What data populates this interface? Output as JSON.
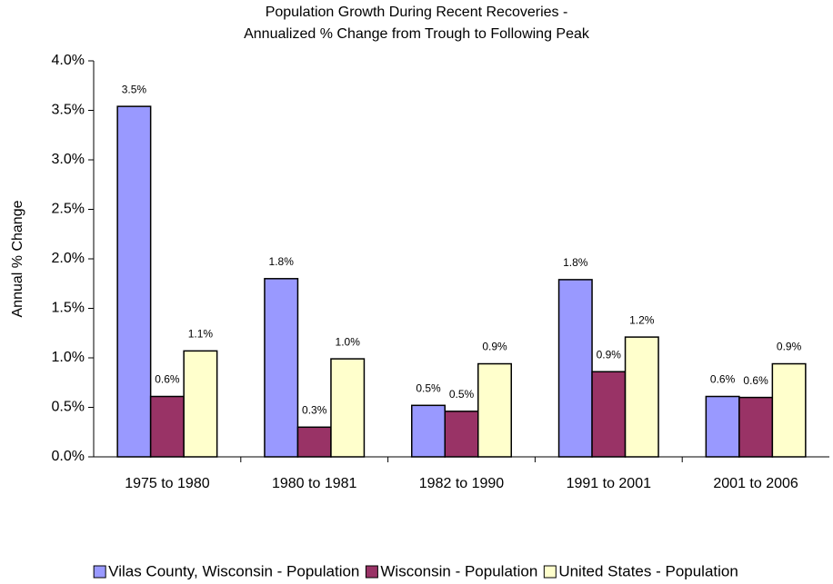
{
  "chart_data": {
    "type": "bar",
    "title": [
      "Population Growth During Recent Recoveries -",
      "Annualized % Change from Trough to Following Peak"
    ],
    "y_label": "Annual % Change",
    "categories": [
      "1975 to 1980",
      "1980 to 1981",
      "1982 to 1990",
      "1991 to 2001",
      "2001 to 2006"
    ],
    "series": [
      {
        "name": "Vilas County, Wisconsin - Population",
        "color": "#9999ff",
        "values": [
          3.54,
          1.8,
          0.52,
          1.79,
          0.61
        ],
        "value_labels": [
          "3.5%",
          "1.8%",
          "0.5%",
          "1.8%",
          "0.6%"
        ]
      },
      {
        "name": "Wisconsin - Population",
        "color": "#993366",
        "values": [
          0.61,
          0.3,
          0.46,
          0.86,
          0.6
        ],
        "value_labels": [
          "0.6%",
          "0.3%",
          "0.5%",
          "0.9%",
          "0.6%"
        ]
      },
      {
        "name": "United States - Population",
        "color": "#ffffcc",
        "values": [
          1.07,
          0.99,
          0.94,
          1.21,
          0.94
        ],
        "value_labels": [
          "1.1%",
          "1.0%",
          "0.9%",
          "1.2%",
          "0.9%"
        ]
      }
    ],
    "ylim": [
      0,
      4
    ],
    "yticks": [
      {
        "value": 0,
        "label": "0.0%"
      },
      {
        "value": 0.5,
        "label": "0.5%"
      },
      {
        "value": 1,
        "label": "1.0%"
      },
      {
        "value": 1.5,
        "label": "1.5%"
      },
      {
        "value": 2,
        "label": "2.0%"
      },
      {
        "value": 2.5,
        "label": "2.5%"
      },
      {
        "value": 3,
        "label": "3.0%"
      },
      {
        "value": 3.5,
        "label": "3.5%"
      },
      {
        "value": 4,
        "label": "4.0%"
      }
    ],
    "grid": false,
    "legend": "bottom"
  }
}
